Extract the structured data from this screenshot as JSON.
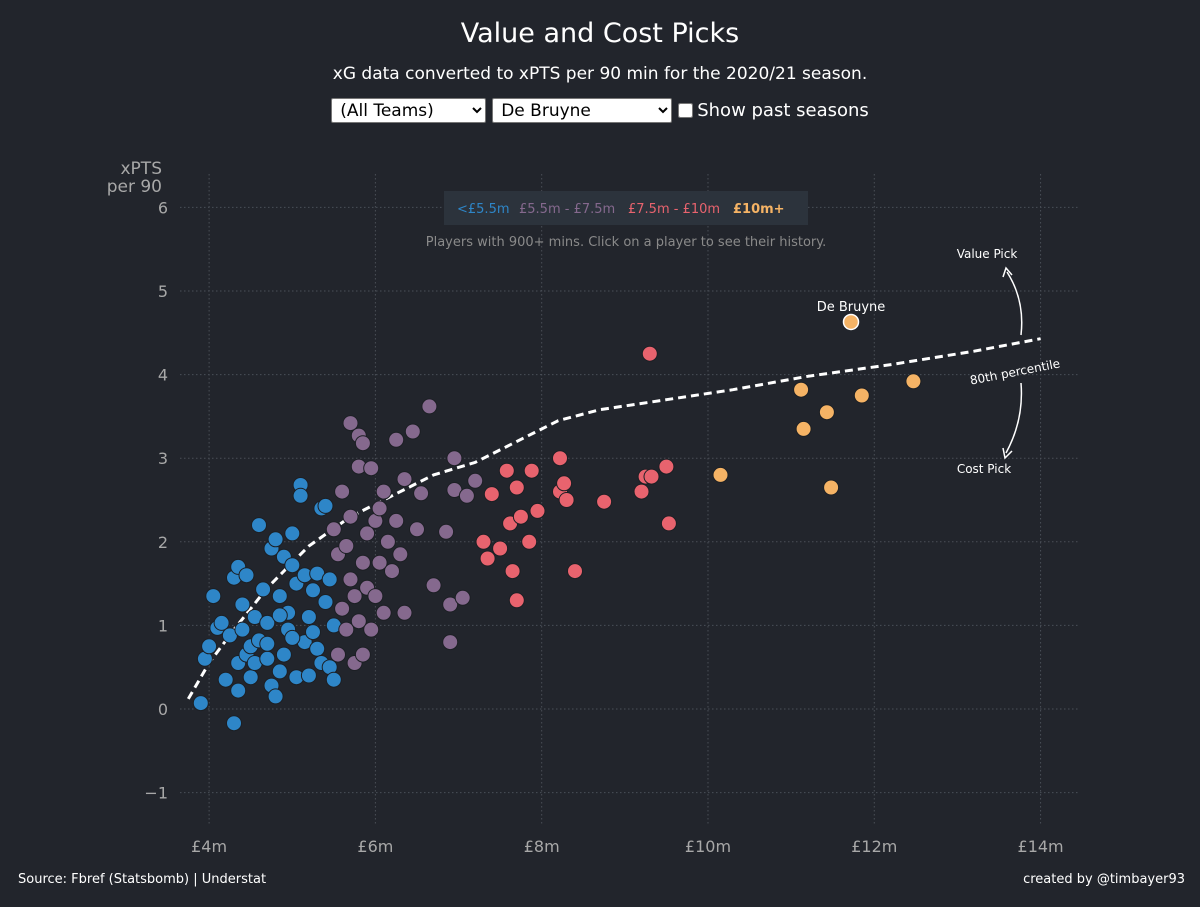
{
  "header": {
    "title": "Value and Cost Picks",
    "subtitle": "xG data converted to xPTS per 90 min for the 2020/21 season."
  },
  "controls": {
    "team_select": {
      "value": "(All Teams)",
      "options": [
        "(All Teams)"
      ]
    },
    "player_select": {
      "value": "De Bruyne",
      "options": [
        "De Bruyne"
      ]
    },
    "checkbox_label": "Show past seasons",
    "checkbox_checked": false
  },
  "chart_data": {
    "type": "scatter",
    "title": "Value and Cost Picks",
    "ylabel_line1": "xPTS",
    "ylabel_line2": "per 90",
    "xlim": [
      3.65,
      14.45
    ],
    "ylim": [
      -1.4,
      6.4
    ],
    "x_ticks": [
      {
        "value": 4,
        "label": "£4m"
      },
      {
        "value": 6,
        "label": "£6m"
      },
      {
        "value": 8,
        "label": "£8m"
      },
      {
        "value": 10,
        "label": "£10m"
      },
      {
        "value": 12,
        "label": "£12m"
      },
      {
        "value": 14,
        "label": "£14m"
      }
    ],
    "y_ticks": [
      {
        "value": -1,
        "label": "−1"
      },
      {
        "value": 0,
        "label": "0"
      },
      {
        "value": 1,
        "label": "1"
      },
      {
        "value": 2,
        "label": "2"
      },
      {
        "value": 3,
        "label": "3"
      },
      {
        "value": 4,
        "label": "4"
      },
      {
        "value": 5,
        "label": "5"
      },
      {
        "value": 6,
        "label": "6"
      }
    ],
    "grid": true,
    "legend_position": "top-center",
    "legend_note": "Players with 900+ mins. Click on a player to see their history.",
    "series": [
      {
        "name": "<£5.5m",
        "color": "#2e86c8",
        "points": [
          [
            3.9,
            0.07
          ],
          [
            3.95,
            0.6
          ],
          [
            4.0,
            0.75
          ],
          [
            4.05,
            1.35
          ],
          [
            4.1,
            0.97
          ],
          [
            4.15,
            1.03
          ],
          [
            4.2,
            0.35
          ],
          [
            4.25,
            0.88
          ],
          [
            4.3,
            -0.17
          ],
          [
            4.3,
            1.57
          ],
          [
            4.35,
            1.7
          ],
          [
            4.35,
            0.22
          ],
          [
            4.35,
            0.55
          ],
          [
            4.4,
            1.25
          ],
          [
            4.4,
            0.95
          ],
          [
            4.45,
            1.6
          ],
          [
            4.45,
            0.65
          ],
          [
            4.5,
            0.75
          ],
          [
            4.5,
            0.38
          ],
          [
            4.55,
            1.1
          ],
          [
            4.55,
            0.55
          ],
          [
            4.6,
            2.2
          ],
          [
            4.6,
            0.82
          ],
          [
            4.65,
            1.43
          ],
          [
            4.7,
            1.03
          ],
          [
            4.7,
            0.6
          ],
          [
            4.75,
            1.92
          ],
          [
            4.75,
            0.28
          ],
          [
            4.8,
            2.03
          ],
          [
            4.8,
            0.15
          ],
          [
            4.85,
            0.45
          ],
          [
            4.85,
            1.35
          ],
          [
            4.9,
            0.65
          ],
          [
            4.9,
            1.82
          ],
          [
            4.95,
            1.15
          ],
          [
            4.95,
            0.95
          ],
          [
            5.0,
            1.72
          ],
          [
            5.0,
            2.1
          ],
          [
            5.05,
            0.38
          ],
          [
            5.05,
            1.5
          ],
          [
            5.1,
            2.68
          ],
          [
            5.1,
            2.55
          ],
          [
            5.15,
            1.6
          ],
          [
            5.15,
            0.8
          ],
          [
            5.2,
            0.4
          ],
          [
            5.2,
            1.1
          ],
          [
            5.25,
            1.42
          ],
          [
            5.3,
            1.62
          ],
          [
            5.3,
            0.72
          ],
          [
            5.35,
            2.4
          ],
          [
            5.35,
            0.55
          ],
          [
            5.4,
            2.43
          ],
          [
            5.4,
            1.28
          ],
          [
            5.45,
            1.55
          ],
          [
            5.45,
            0.5
          ],
          [
            5.5,
            1.0
          ],
          [
            5.5,
            0.35
          ],
          [
            5.25,
            0.92
          ],
          [
            4.85,
            1.12
          ],
          [
            5.0,
            0.85
          ],
          [
            4.7,
            0.78
          ]
        ]
      },
      {
        "name": "£5.5m - £7.5m",
        "color": "#85698e",
        "points": [
          [
            5.5,
            2.15
          ],
          [
            5.55,
            1.85
          ],
          [
            5.55,
            0.65
          ],
          [
            5.6,
            2.6
          ],
          [
            5.6,
            1.2
          ],
          [
            5.65,
            1.95
          ],
          [
            5.65,
            0.95
          ],
          [
            5.7,
            3.42
          ],
          [
            5.7,
            2.3
          ],
          [
            5.7,
            1.55
          ],
          [
            5.75,
            0.55
          ],
          [
            5.75,
            1.35
          ],
          [
            5.8,
            3.27
          ],
          [
            5.8,
            2.9
          ],
          [
            5.8,
            1.05
          ],
          [
            5.85,
            1.75
          ],
          [
            5.85,
            0.65
          ],
          [
            5.9,
            2.1
          ],
          [
            5.9,
            1.45
          ],
          [
            5.95,
            2.88
          ],
          [
            5.95,
            0.95
          ],
          [
            6.0,
            2.25
          ],
          [
            6.0,
            1.35
          ],
          [
            6.05,
            1.75
          ],
          [
            6.1,
            2.6
          ],
          [
            6.1,
            1.15
          ],
          [
            6.15,
            2.0
          ],
          [
            6.2,
            1.65
          ],
          [
            6.25,
            3.22
          ],
          [
            6.25,
            2.25
          ],
          [
            6.3,
            1.85
          ],
          [
            6.35,
            2.75
          ],
          [
            6.35,
            1.15
          ],
          [
            6.45,
            3.32
          ],
          [
            6.55,
            2.58
          ],
          [
            6.65,
            3.62
          ],
          [
            6.7,
            1.48
          ],
          [
            6.85,
            2.12
          ],
          [
            6.9,
            1.25
          ],
          [
            6.9,
            0.8
          ],
          [
            6.95,
            3.0
          ],
          [
            6.95,
            2.62
          ],
          [
            7.05,
            1.33
          ],
          [
            7.1,
            2.55
          ],
          [
            7.2,
            2.73
          ],
          [
            6.5,
            2.15
          ],
          [
            5.85,
            3.18
          ],
          [
            6.05,
            2.4
          ]
        ]
      },
      {
        "name": "£7.5m - £10m",
        "color": "#e8636e",
        "points": [
          [
            7.3,
            2.0
          ],
          [
            7.35,
            1.8
          ],
          [
            7.4,
            2.57
          ],
          [
            7.5,
            1.92
          ],
          [
            7.58,
            2.85
          ],
          [
            7.62,
            2.22
          ],
          [
            7.65,
            1.65
          ],
          [
            7.7,
            1.3
          ],
          [
            7.7,
            2.65
          ],
          [
            7.75,
            2.3
          ],
          [
            7.85,
            2.0
          ],
          [
            7.88,
            2.85
          ],
          [
            7.95,
            2.37
          ],
          [
            8.22,
            3.0
          ],
          [
            8.22,
            2.6
          ],
          [
            8.27,
            2.7
          ],
          [
            8.3,
            2.5
          ],
          [
            8.4,
            1.65
          ],
          [
            8.75,
            2.48
          ],
          [
            9.2,
            2.6
          ],
          [
            9.25,
            2.78
          ],
          [
            9.32,
            2.78
          ],
          [
            9.3,
            4.25
          ],
          [
            9.5,
            2.9
          ],
          [
            9.53,
            2.22
          ]
        ]
      },
      {
        "name": "£10m+",
        "color": "#f5b365",
        "points": [
          [
            10.15,
            2.8
          ],
          [
            11.12,
            3.82
          ],
          [
            11.15,
            3.35
          ],
          [
            11.43,
            3.55
          ],
          [
            11.48,
            2.65
          ],
          [
            11.85,
            3.75
          ],
          [
            12.47,
            3.92
          ]
        ]
      }
    ],
    "highlight": {
      "name": "De Bruyne",
      "x": 11.72,
      "y": 4.63,
      "color": "#f5b365"
    },
    "percentile_line": {
      "label": "80th percentile",
      "points": [
        [
          3.75,
          0.12
        ],
        [
          4.0,
          0.55
        ],
        [
          4.3,
          0.95
        ],
        [
          4.7,
          1.45
        ],
        [
          5.2,
          1.95
        ],
        [
          5.7,
          2.3
        ],
        [
          6.2,
          2.55
        ],
        [
          6.7,
          2.8
        ],
        [
          7.2,
          2.95
        ],
        [
          7.6,
          3.15
        ],
        [
          8.2,
          3.45
        ],
        [
          8.7,
          3.58
        ],
        [
          9.5,
          3.7
        ],
        [
          10.3,
          3.82
        ],
        [
          11.2,
          3.98
        ],
        [
          12.2,
          4.12
        ],
        [
          13.2,
          4.28
        ],
        [
          14.0,
          4.43
        ]
      ]
    },
    "annotations": {
      "value_pick": "Value Pick",
      "cost_pick": "Cost Pick"
    }
  },
  "footer": {
    "source": "Source: Fbref (Statsbomb) | Understat",
    "credit": "created by @timbayer93"
  }
}
